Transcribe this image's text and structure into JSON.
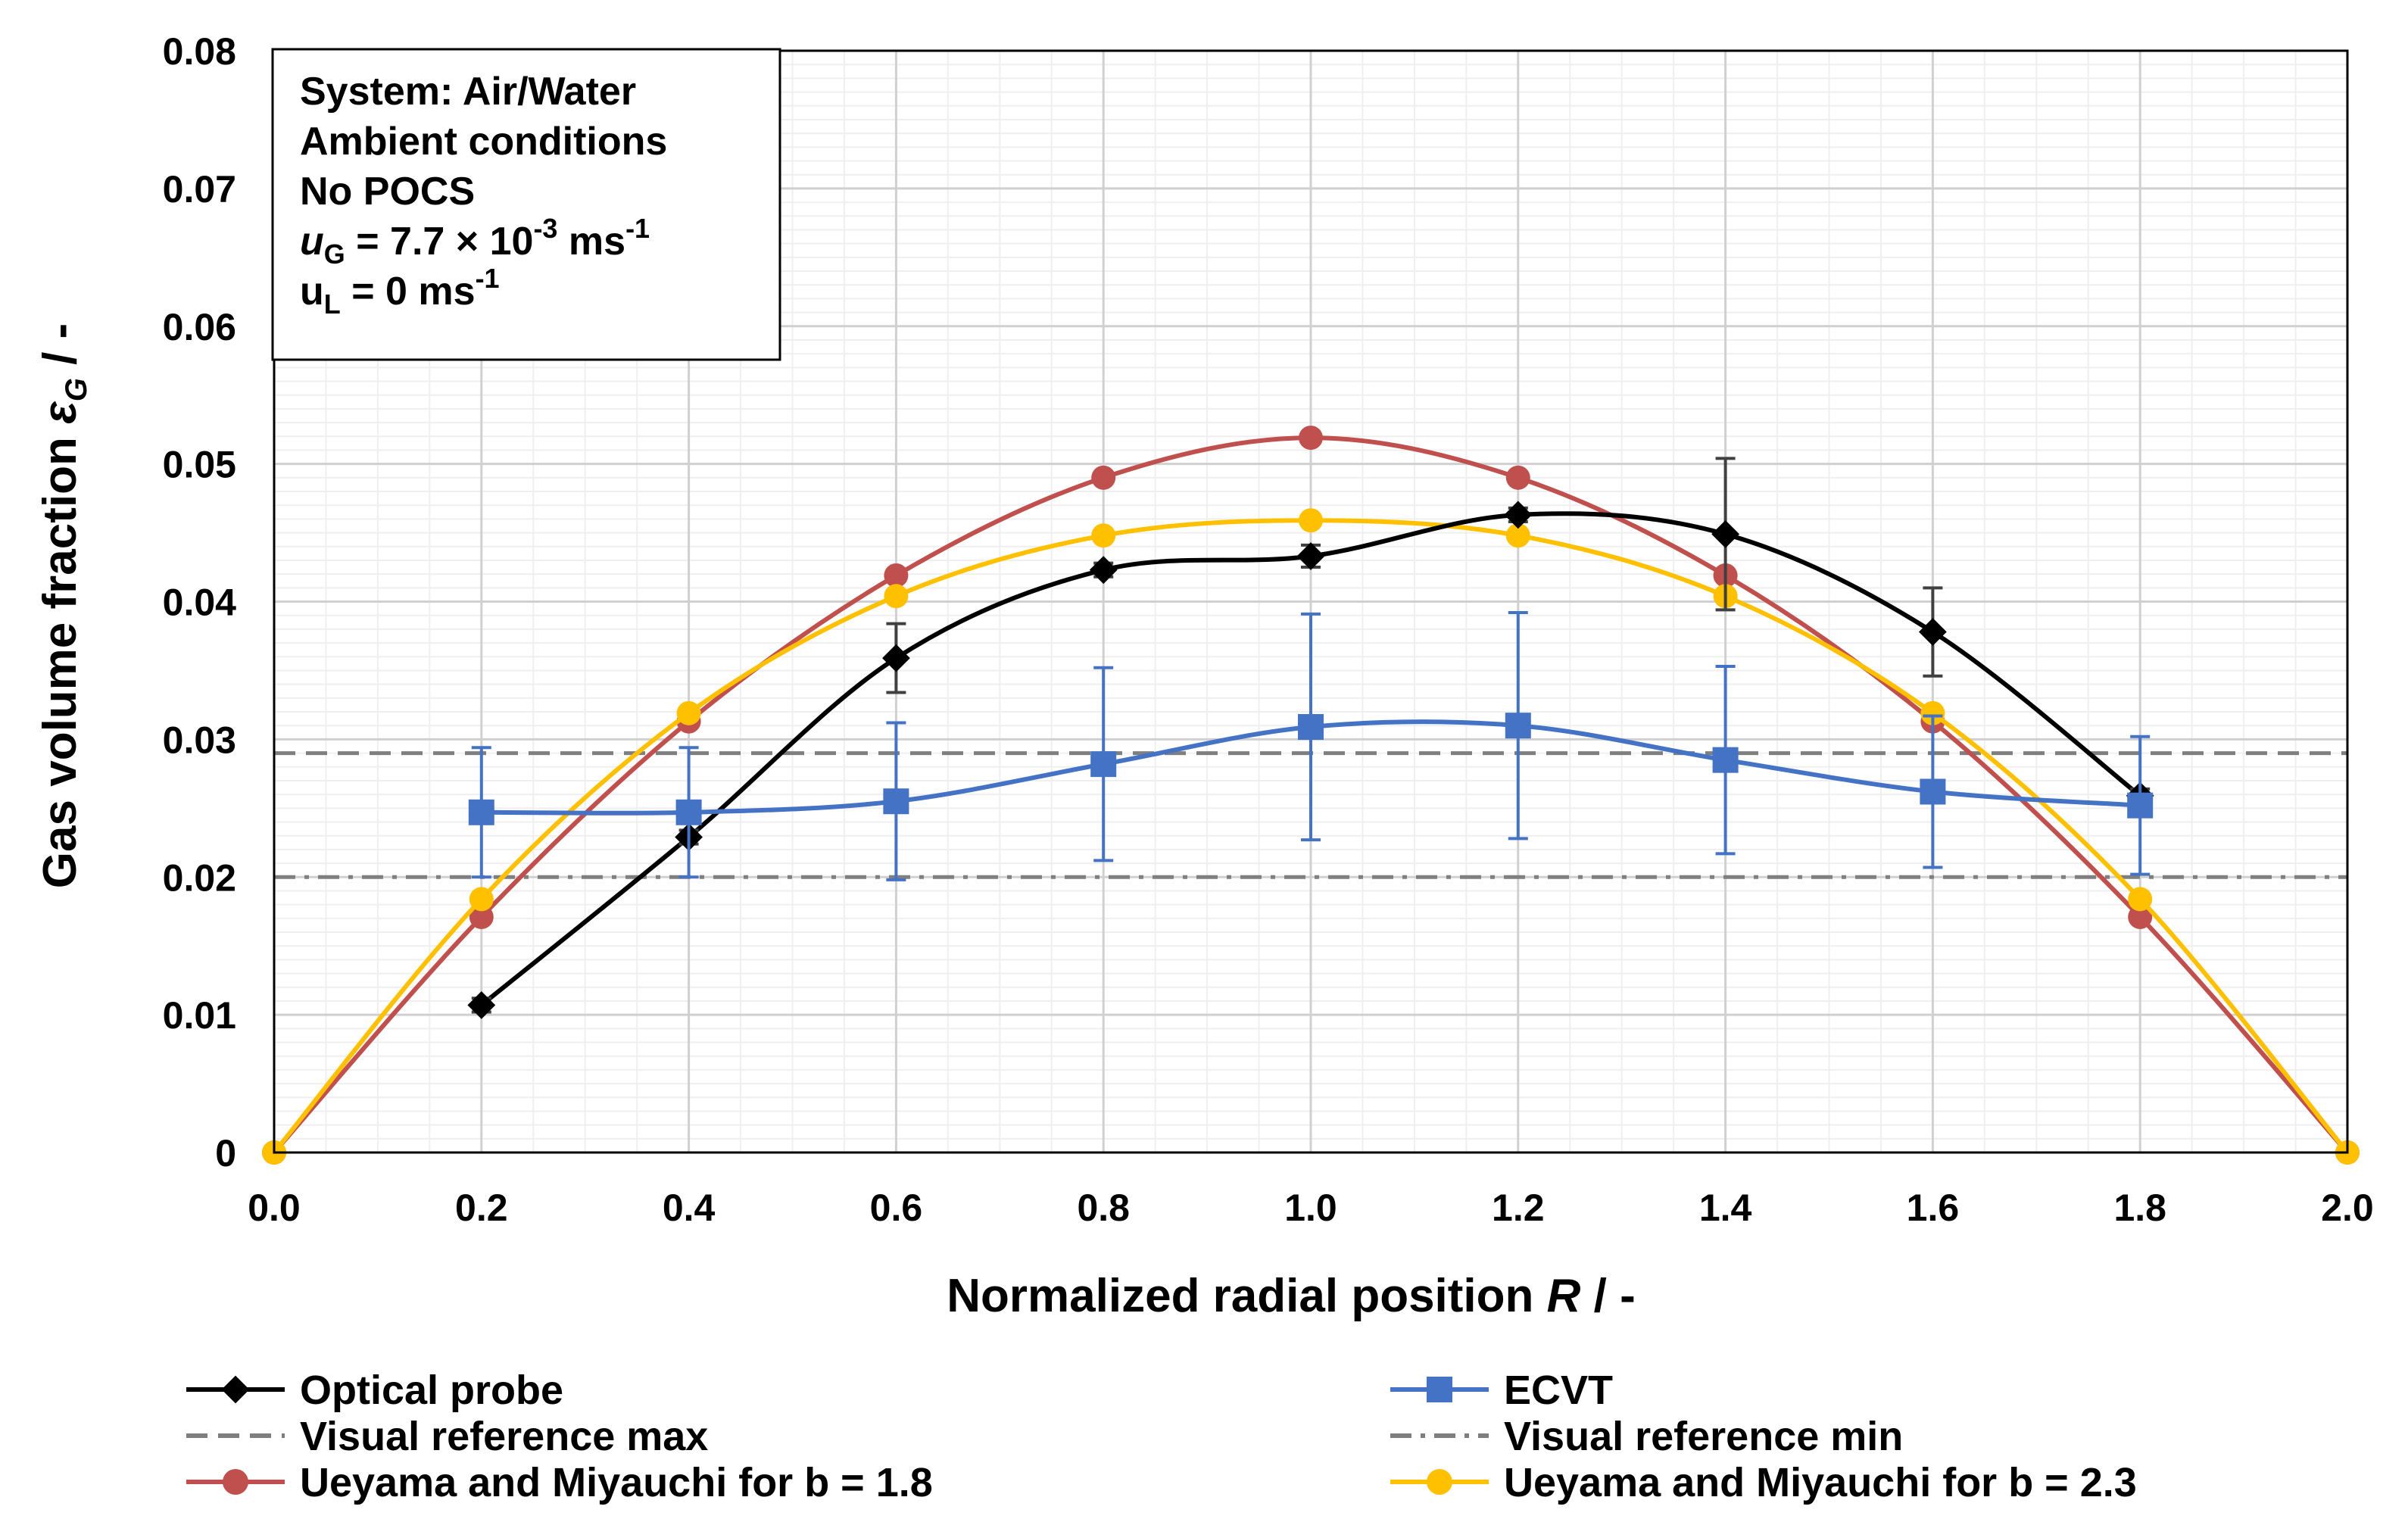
{
  "chart_data": {
    "type": "line",
    "xlabel_prefix": "Normalized radial position ",
    "xlabel_var": "R",
    "xlabel_suffix": " / -",
    "ylabel_prefix": "Gas volume fraction ",
    "ylabel_var": "ε",
    "ylabel_sub": "G",
    "ylabel_suffix": " / -",
    "xlim": [
      0.0,
      2.0
    ],
    "ylim": [
      0,
      0.08
    ],
    "xticks": [
      "0.0",
      "0.2",
      "0.4",
      "0.6",
      "0.8",
      "1.0",
      "1.2",
      "1.4",
      "1.6",
      "1.8",
      "2.0"
    ],
    "yticks": [
      "0",
      "0.01",
      "0.02",
      "0.03",
      "0.04",
      "0.05",
      "0.06",
      "0.07",
      "0.08"
    ],
    "grid": true,
    "annotation": {
      "line1": "System:  Air/Water",
      "line2": "Ambient conditions",
      "line3": "No POCS",
      "line4_var": "u",
      "line4_sub": "G",
      "line4_text": " = 7.7 × 10",
      "line4_exp": "-3",
      "line4_unit": " ms",
      "line4_unit_exp": "-1",
      "line5_var": "u",
      "line5_sub": "L",
      "line5_text": " = 0 ms",
      "line5_exp": "-1"
    },
    "series": [
      {
        "name": "Optical probe",
        "color": "#000000",
        "marker": "diamond",
        "x": [
          0.2,
          0.4,
          0.6,
          0.8,
          1.0,
          1.2,
          1.4,
          1.6,
          1.8
        ],
        "y": [
          0.0107,
          0.0229,
          0.0359,
          0.0423,
          0.0433,
          0.0463,
          0.0449,
          0.0378,
          0.0259
        ],
        "err": [
          0.0005,
          0.0005,
          0.0025,
          0.0005,
          0.0008,
          0.0005,
          0.0055,
          0.0032,
          0.0005
        ]
      },
      {
        "name": "ECVT",
        "color": "#4472C4",
        "marker": "square",
        "x": [
          0.2,
          0.4,
          0.6,
          0.8,
          1.0,
          1.2,
          1.4,
          1.6,
          1.8
        ],
        "y": [
          0.0247,
          0.0247,
          0.0255,
          0.0282,
          0.0309,
          0.031,
          0.0285,
          0.0262,
          0.0252
        ],
        "err": [
          0.0047,
          0.0047,
          0.0057,
          0.007,
          0.0082,
          0.0082,
          0.0068,
          0.0055,
          0.005
        ]
      },
      {
        "name": "Ueyama and Miyauchi for b = 1.8",
        "color": "#C0504D",
        "marker": "circle",
        "x": [
          0.0,
          0.2,
          0.4,
          0.6,
          0.8,
          1.0,
          1.2,
          1.4,
          1.6,
          1.8,
          2.0
        ],
        "y": [
          0.0,
          0.0171,
          0.0313,
          0.0419,
          0.049,
          0.0519,
          0.049,
          0.0419,
          0.0313,
          0.0171,
          0.0
        ]
      },
      {
        "name": "Ueyama and Miyauchi for b = 2.3",
        "color": "#FFC000",
        "marker": "circle",
        "x": [
          0.0,
          0.2,
          0.4,
          0.6,
          0.8,
          1.0,
          1.2,
          1.4,
          1.6,
          1.8,
          2.0
        ],
        "y": [
          0.0,
          0.0184,
          0.0319,
          0.0404,
          0.0448,
          0.0459,
          0.0448,
          0.0404,
          0.0319,
          0.0184,
          0.0
        ]
      },
      {
        "name": "Visual reference max",
        "color": "#7F7F7F",
        "style": "dashed",
        "y_const": 0.029
      },
      {
        "name": "Visual reference min",
        "color": "#7F7F7F",
        "style": "dashdot",
        "y_const": 0.02
      }
    ]
  }
}
